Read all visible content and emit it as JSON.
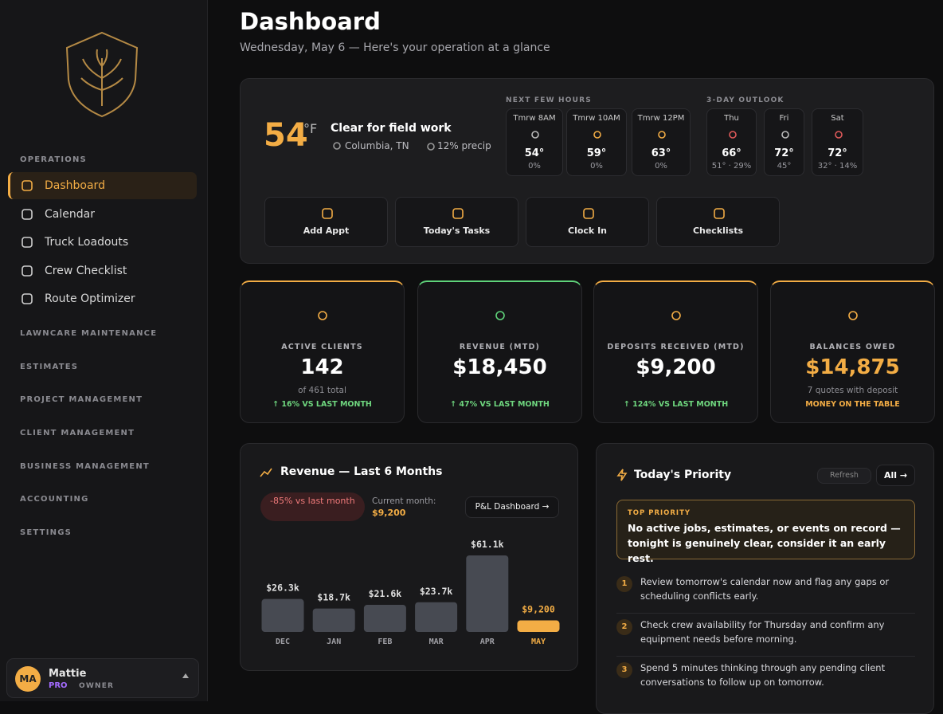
{
  "sidebar": {
    "section": "OPERATIONS",
    "nav": [
      "Dashboard",
      "Calendar",
      "Truck Loadouts",
      "Crew Checklist",
      "Route Optimizer"
    ],
    "groups": [
      "LAWNCARE MAINTENANCE",
      "ESTIMATES",
      "PROJECT MANAGEMENT",
      "CLIENT MANAGEMENT",
      "BUSINESS MANAGEMENT",
      "ACCOUNTING",
      "SETTINGS"
    ],
    "user": {
      "initials": "MA",
      "name": "Mattie",
      "plan": "PRO",
      "role": "OWNER"
    }
  },
  "header": {
    "title": "Dashboard",
    "subtitle": "Wednesday, May 6 — Here's your operation at a glance"
  },
  "weather": {
    "temp": "54",
    "unit": "°F",
    "condition": "Clear for field work",
    "location": "Columbia, TN",
    "precip": "12% precip",
    "hours_label": "NEXT FEW HOURS",
    "outlook_label": "3-DAY OUTLOOK",
    "hours": [
      {
        "time": "Tmrw 8AM",
        "temp": "54°",
        "detail": "0%"
      },
      {
        "time": "Tmrw 10AM",
        "temp": "59°",
        "detail": "0%"
      },
      {
        "time": "Tmrw 12PM",
        "temp": "63°",
        "detail": "0%"
      }
    ],
    "days": [
      {
        "time": "Thu",
        "temp": "66°",
        "detail": "51° · 29%"
      },
      {
        "time": "Fri",
        "temp": "72°",
        "detail": "45°"
      },
      {
        "time": "Sat",
        "temp": "72°",
        "detail": "32° · 14%"
      }
    ]
  },
  "quick_actions": [
    "Add Appt",
    "Today's Tasks",
    "Clock In",
    "Checklists"
  ],
  "stats": [
    {
      "label": "ACTIVE CLIENTS",
      "value": "142",
      "sub": "of 461 total",
      "trend": "↑ 16% VS LAST MONTH"
    },
    {
      "label": "REVENUE (MTD)",
      "value": "$18,450",
      "trend": "↑ 47% VS LAST MONTH"
    },
    {
      "label": "DEPOSITS RECEIVED (MTD)",
      "value": "$9,200",
      "trend": "↑ 124% VS LAST MONTH"
    },
    {
      "label": "BALANCES OWED",
      "value": "$14,875",
      "sub": "7 quotes with deposit",
      "trend": "MONEY ON THE TABLE"
    }
  ],
  "revenue_panel": {
    "title": "Revenue — Last 6 Months",
    "badge": "-85% vs last month",
    "current_label": "Current month:",
    "current_value": "$9,200",
    "button": "P&L Dashboard →"
  },
  "chart_data": {
    "type": "bar",
    "categories": [
      "DEC",
      "JAN",
      "FEB",
      "MAR",
      "APR",
      "MAY"
    ],
    "values": [
      26300,
      18700,
      21600,
      23700,
      61100,
      9200
    ],
    "value_labels": [
      "$26.3k",
      "$18.7k",
      "$21.6k",
      "$23.7k",
      "$61.1k",
      "$9,200"
    ],
    "color": "#474a52",
    "highlight_color": "#f3ad45"
  },
  "priority": {
    "title": "Today's Priority",
    "refresh": "Refresh",
    "all": "All →",
    "top_label": "TOP PRIORITY",
    "top_text": "No active jobs, estimates, or events on record — tonight is genuinely clear, consider it an early rest.",
    "items": [
      {
        "num": "1",
        "text": "Review tomorrow's calendar now and flag any gaps or scheduling conflicts early."
      },
      {
        "num": "2",
        "text": "Check crew availability for Thursday and confirm any equipment needs before morning."
      },
      {
        "num": "3",
        "text": "Spend 5 minutes thinking through any pending client conversations to follow up on tomorrow."
      }
    ]
  }
}
